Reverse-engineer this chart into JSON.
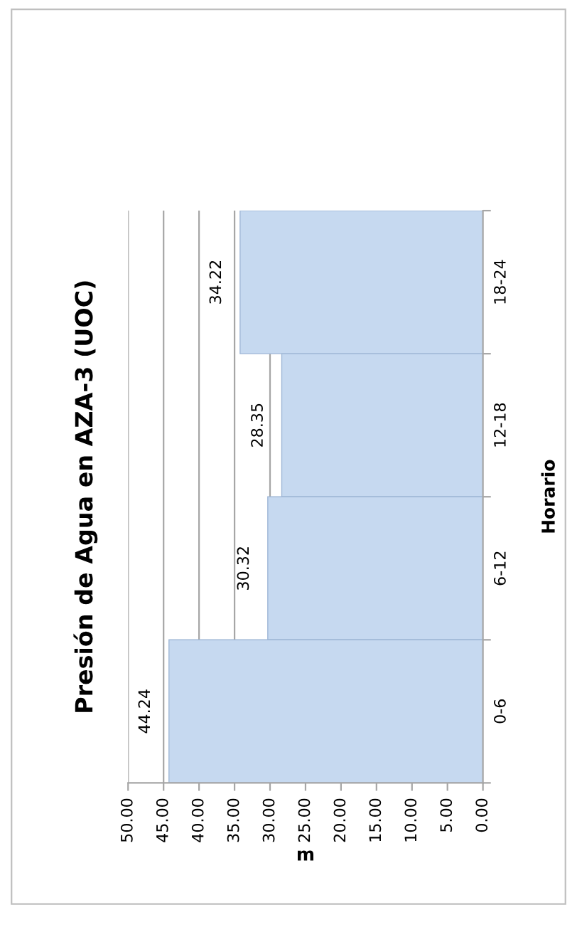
{
  "chart_data": {
    "type": "bar",
    "orientation": "horizontal",
    "title": "Presión de Agua en AZA-3 (UOC)",
    "xlabel": "m",
    "ylabel": "Horario",
    "categories": [
      "18-24",
      "12-18",
      "6-12",
      "0-6"
    ],
    "series": [
      {
        "color": "#c6d9f0",
        "values": [
          34.22,
          28.35,
          30.32,
          44.24
        ]
      }
    ],
    "xlim": [
      50,
      0
    ],
    "xticks": [
      {
        "value": 50,
        "label": "50.00"
      },
      {
        "value": 45,
        "label": "45.00"
      },
      {
        "value": 40,
        "label": "40.00"
      },
      {
        "value": 35,
        "label": "35.00"
      },
      {
        "value": 30,
        "label": "30.00"
      },
      {
        "value": 25,
        "label": "25.00"
      },
      {
        "value": 20,
        "label": "20.00"
      },
      {
        "value": 15,
        "label": "15.00"
      },
      {
        "value": 10,
        "label": "10.00"
      },
      {
        "value": 5,
        "label": "5.00"
      },
      {
        "value": 0,
        "label": "0.00"
      }
    ],
    "grid": "x",
    "data_labels": true,
    "legend": false
  }
}
